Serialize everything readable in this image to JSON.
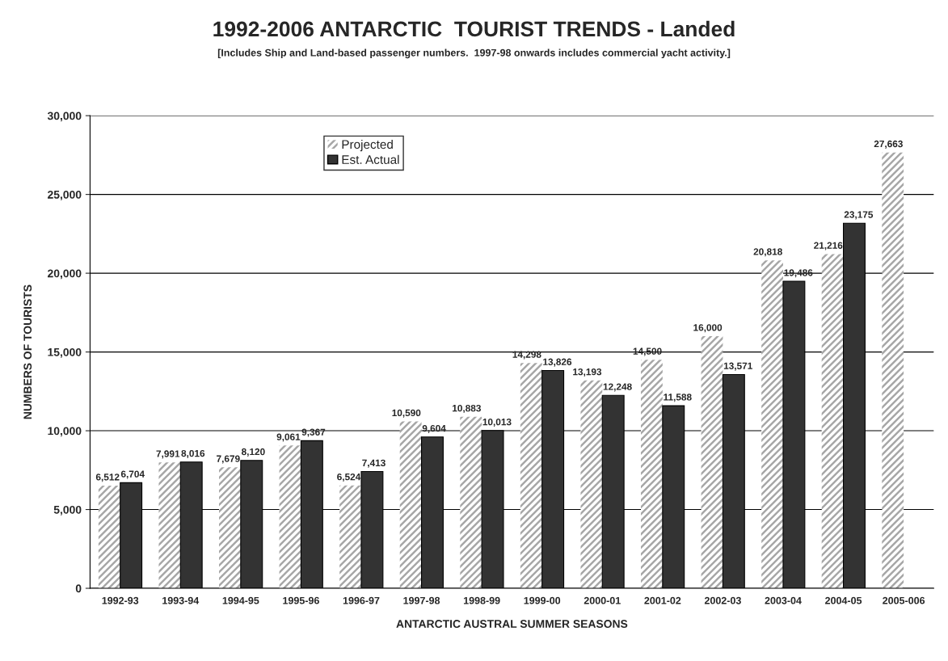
{
  "chart_data": {
    "type": "bar",
    "title": "1992-2006 ANTARCTIC  TOURIST TRENDS - Landed",
    "subtitle": "[Includes Ship and Land-based passenger numbers.  1997-98 onwards includes commercial yacht activity.]",
    "xlabel": "ANTARCTIC AUSTRAL SUMMER SEASONS",
    "ylabel": "NUMBERS OF TOURISTS",
    "categories": [
      "1992-93",
      "1993-94",
      "1994-95",
      "1995-96",
      "1996-97",
      "1997-98",
      "1998-99",
      "1999-00",
      "2000-01",
      "2001-02",
      "2002-03",
      "2003-04",
      "2004-05",
      "2005-006"
    ],
    "series": [
      {
        "name": "Projected",
        "color": "#a6a6a6",
        "values": [
          6512,
          7991,
          7679,
          9061,
          6524,
          10590,
          10883,
          14298,
          13193,
          14500,
          16000,
          20818,
          21216,
          27663
        ],
        "value_labels": [
          "6,512",
          "7,991",
          "7,679",
          "9,061",
          "6,524",
          "10,590",
          "10,883",
          "14,298",
          "13,193",
          "14,500",
          "16,000",
          "20,818",
          "21,216",
          "27,663"
        ]
      },
      {
        "name": "Est. Actual",
        "color": "#333333",
        "values": [
          6704,
          8016,
          8120,
          9367,
          7413,
          9604,
          10013,
          13826,
          12248,
          11588,
          13571,
          19486,
          23175,
          null
        ],
        "value_labels": [
          "6,704",
          "8,016",
          "8,120",
          "9,367",
          "7,413",
          "9,604",
          "10,013",
          "13,826",
          "12,248",
          "11,588",
          "13,571",
          "19,486",
          "23,175",
          null
        ]
      }
    ],
    "ylim": [
      0,
      30000
    ],
    "yticks": [
      0,
      {
        "value": 5000,
        "label": "5,000"
      },
      {
        "value": 10000,
        "label": "10,000"
      },
      {
        "value": 15000,
        "label": "15,000"
      },
      {
        "value": 20000,
        "label": "20,000"
      },
      {
        "value": 25000,
        "label": "25,000"
      },
      {
        "value": 30000,
        "label": "30,000"
      }
    ],
    "grid": "y",
    "legend": "top left"
  }
}
